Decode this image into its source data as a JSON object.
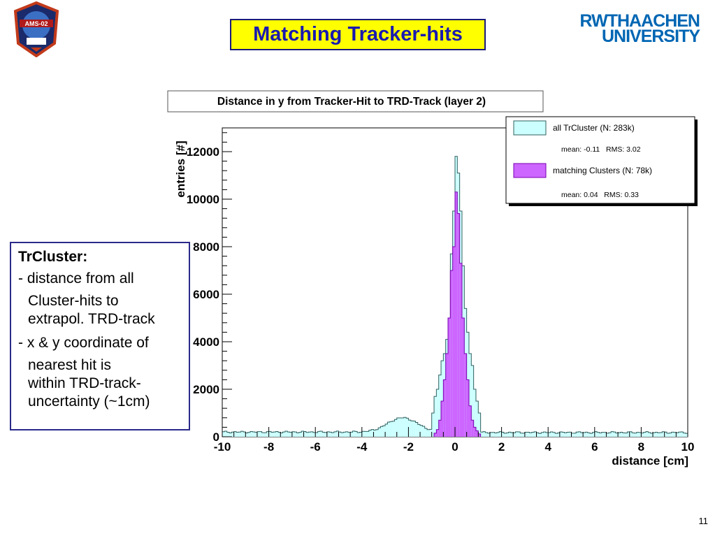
{
  "slide": {
    "title": "Matching Tracker-hits",
    "page_number": "11",
    "logo_left_text": "AMS-02",
    "logo_right_line1": "RWTHAACHEN",
    "logo_right_line2": "UNIVERSITY"
  },
  "textbox": {
    "heading": "TrCluster:",
    "bullets": [
      {
        "lines": [
          "- distance from all",
          "Cluster-hits to",
          "extrapol. TRD-track"
        ]
      },
      {
        "lines": [
          "- x & y coordinate of",
          "nearest hit is",
          "within TRD-track-",
          "uncertainty (~1cm)"
        ]
      }
    ]
  },
  "chart_data": {
    "type": "bar",
    "title": "Distance in y from Tracker-Hit to TRD-Track (layer 2)",
    "xlabel": "distance  [cm]",
    "ylabel": "entries  [#]",
    "xlim": [
      -10,
      10
    ],
    "ylim": [
      0,
      13000
    ],
    "x_ticks": [
      "-10",
      "-8",
      "-6",
      "-4",
      "-2",
      "0",
      "2",
      "4",
      "6",
      "8",
      "10"
    ],
    "y_ticks": [
      "0",
      "2000",
      "4000",
      "6000",
      "8000",
      "10000",
      "12000"
    ],
    "legend_position": "top-right",
    "series": [
      {
        "name": "all TrCluster (N: 283k)",
        "stats": "mean: -0.11   RMS: 3.02",
        "color": "#ccffff",
        "edge": "#2f5f5f",
        "bins": [
          [
            -1.0,
            1000
          ],
          [
            -0.9,
            1700
          ],
          [
            -0.8,
            2000
          ],
          [
            -0.7,
            2600
          ],
          [
            -0.6,
            3200
          ],
          [
            -0.5,
            3500
          ],
          [
            -0.4,
            4100
          ],
          [
            -0.3,
            5000
          ],
          [
            -0.2,
            7700
          ],
          [
            -0.1,
            9500
          ],
          [
            0.0,
            11800
          ],
          [
            0.1,
            11100
          ],
          [
            0.2,
            9500
          ],
          [
            0.3,
            7200
          ],
          [
            0.4,
            5400
          ],
          [
            0.5,
            4400
          ],
          [
            0.6,
            3500
          ],
          [
            0.7,
            3000
          ],
          [
            0.8,
            2000
          ],
          [
            0.9,
            1500
          ],
          [
            1.0,
            1000
          ]
        ],
        "baseline_left": 200,
        "baseline_right": 180,
        "bump_center": -2.3,
        "bump_peak": 600
      },
      {
        "name": "matching Clusters (N: 78k)",
        "stats": "mean: 0.04   RMS: 0.33",
        "color": "#cc66ff",
        "edge": "#7a00b0",
        "bins": [
          [
            -0.9,
            150
          ],
          [
            -0.8,
            300
          ],
          [
            -0.7,
            700
          ],
          [
            -0.6,
            1500
          ],
          [
            -0.5,
            2400
          ],
          [
            -0.4,
            3500
          ],
          [
            -0.3,
            5000
          ],
          [
            -0.2,
            7000
          ],
          [
            -0.1,
            8000
          ],
          [
            0.0,
            10300
          ],
          [
            0.1,
            9400
          ],
          [
            0.2,
            7300
          ],
          [
            0.3,
            5000
          ],
          [
            0.4,
            3500
          ],
          [
            0.5,
            2400
          ],
          [
            0.6,
            1300
          ],
          [
            0.7,
            700
          ],
          [
            0.8,
            400
          ],
          [
            0.9,
            250
          ],
          [
            1.0,
            120
          ]
        ]
      }
    ]
  }
}
